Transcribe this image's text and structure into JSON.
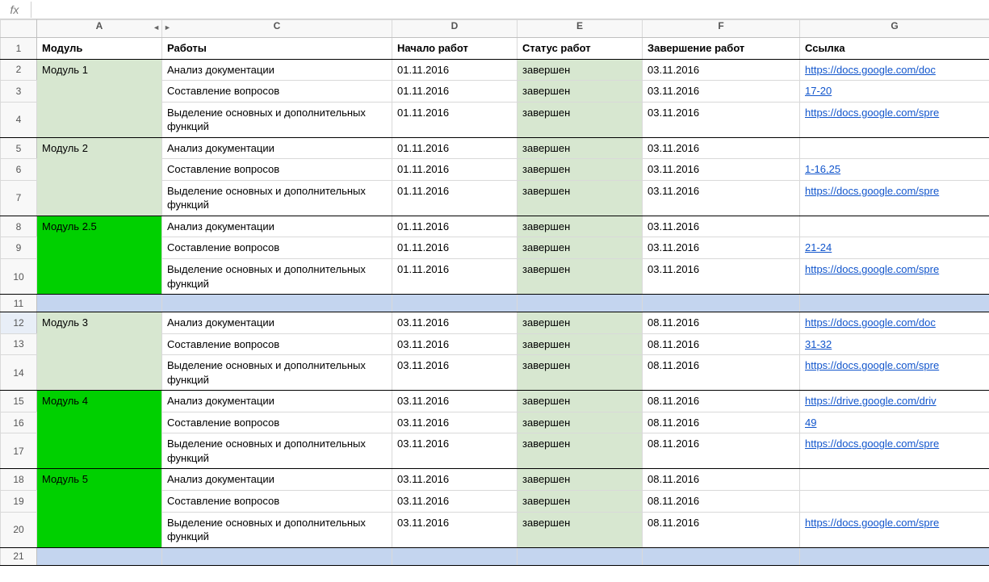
{
  "formula_bar": {
    "fx_label": "fx",
    "value": ""
  },
  "columns": {
    "A": "A",
    "C": "C",
    "D": "D",
    "E": "E",
    "F": "F",
    "G": "G"
  },
  "row_numbers": [
    "1",
    "2",
    "3",
    "4",
    "5",
    "6",
    "7",
    "8",
    "9",
    "10",
    "11",
    "12",
    "13",
    "14",
    "15",
    "16",
    "17",
    "18",
    "19",
    "20",
    "21"
  ],
  "selected_row": "12",
  "header": {
    "A": "Модуль",
    "C": "Работы",
    "D": "Начало работ",
    "E": "Статус работ",
    "F": "Завершение работ",
    "G": "Ссылка"
  },
  "colors": {
    "module_light": "#d7e7d0",
    "module_bright": "#00d000",
    "status_done": "#d7e7d0",
    "empty_row_blue": "#c4d5ef",
    "link": "#1155cc",
    "grid_border": "#d9d9d9",
    "strong_border": "#000000",
    "chrome_bg": "#f8f8f8"
  },
  "groups": [
    {
      "module": "Модуль 1",
      "module_color": "light",
      "rows": [
        {
          "work": "Анализ документации",
          "start": "01.11.2016",
          "status": "завершен",
          "end": "03.11.2016",
          "link": "https://docs.google.com/doc",
          "tall": false
        },
        {
          "work": "Составление вопросов",
          "start": "01.11.2016",
          "status": "завершен",
          "end": "03.11.2016",
          "link": "17-20",
          "tall": false
        },
        {
          "work": "Выделение основных и дополнительных функций",
          "start": "01.11.2016",
          "status": "завершен",
          "end": "03.11.2016",
          "link": "https://docs.google.com/spre",
          "tall": true
        }
      ]
    },
    {
      "module": "Модуль 2",
      "module_color": "light",
      "rows": [
        {
          "work": "Анализ документации",
          "start": "01.11.2016",
          "status": "завершен",
          "end": "03.11.2016",
          "link": "",
          "tall": false
        },
        {
          "work": "Составление вопросов",
          "start": "01.11.2016",
          "status": "завершен",
          "end": "03.11.2016",
          "link": "1-16,25",
          "tall": false
        },
        {
          "work": "Выделение основных и дополнительных функций",
          "start": "01.11.2016",
          "status": "завершен",
          "end": "03.11.2016",
          "link": "https://docs.google.com/spre",
          "tall": true
        }
      ]
    },
    {
      "module": "Модуль 2.5",
      "module_color": "bright",
      "rows": [
        {
          "work": "Анализ документации",
          "start": "01.11.2016",
          "status": "завершен",
          "end": "03.11.2016",
          "link": "",
          "tall": false
        },
        {
          "work": "Составление вопросов",
          "start": "01.11.2016",
          "status": "завершен",
          "end": "03.11.2016",
          "link": "21-24",
          "tall": false
        },
        {
          "work": "Выделение основных и дополнительных функций",
          "start": "01.11.2016",
          "status": "завершен",
          "end": "03.11.2016",
          "link": "https://docs.google.com/spre",
          "tall": true
        }
      ]
    },
    {
      "separator": true
    },
    {
      "module": "Модуль 3",
      "module_color": "light",
      "rows": [
        {
          "work": "Анализ документации",
          "start": "03.11.2016",
          "status": "завершен",
          "end": "08.11.2016",
          "link": "https://docs.google.com/doc",
          "tall": false
        },
        {
          "work": "Составление вопросов",
          "start": "03.11.2016",
          "status": "завершен",
          "end": "08.11.2016",
          "link": "31-32",
          "tall": false
        },
        {
          "work": "Выделение основных и дополнительных функций",
          "start": "03.11.2016",
          "status": "завершен",
          "end": "08.11.2016",
          "link": "https://docs.google.com/spre",
          "tall": true
        }
      ]
    },
    {
      "module": "Модуль 4",
      "module_color": "bright",
      "rows": [
        {
          "work": "Анализ документации",
          "start": "03.11.2016",
          "status": "завершен",
          "end": "08.11.2016",
          "link": "https://drive.google.com/driv",
          "tall": false
        },
        {
          "work": "Составление вопросов",
          "start": "03.11.2016",
          "status": "завершен",
          "end": "08.11.2016",
          "link": "49",
          "tall": false
        },
        {
          "work": "Выделение основных и дополнительных функций",
          "start": "03.11.2016",
          "status": "завершен",
          "end": "08.11.2016",
          "link": "https://docs.google.com/spre",
          "tall": true
        }
      ]
    },
    {
      "module": "Модуль 5",
      "module_color": "bright",
      "rows": [
        {
          "work": "Анализ документации",
          "start": "03.11.2016",
          "status": "завершен",
          "end": "08.11.2016",
          "link": "",
          "tall": false
        },
        {
          "work": "Составление вопросов",
          "start": "03.11.2016",
          "status": "завершен",
          "end": "08.11.2016",
          "link": "",
          "tall": false
        },
        {
          "work": "Выделение основных и дополнительных функций",
          "start": "03.11.2016",
          "status": "завершен",
          "end": "08.11.2016",
          "link": "https://docs.google.com/spre",
          "tall": true
        }
      ]
    },
    {
      "separator": true
    }
  ]
}
